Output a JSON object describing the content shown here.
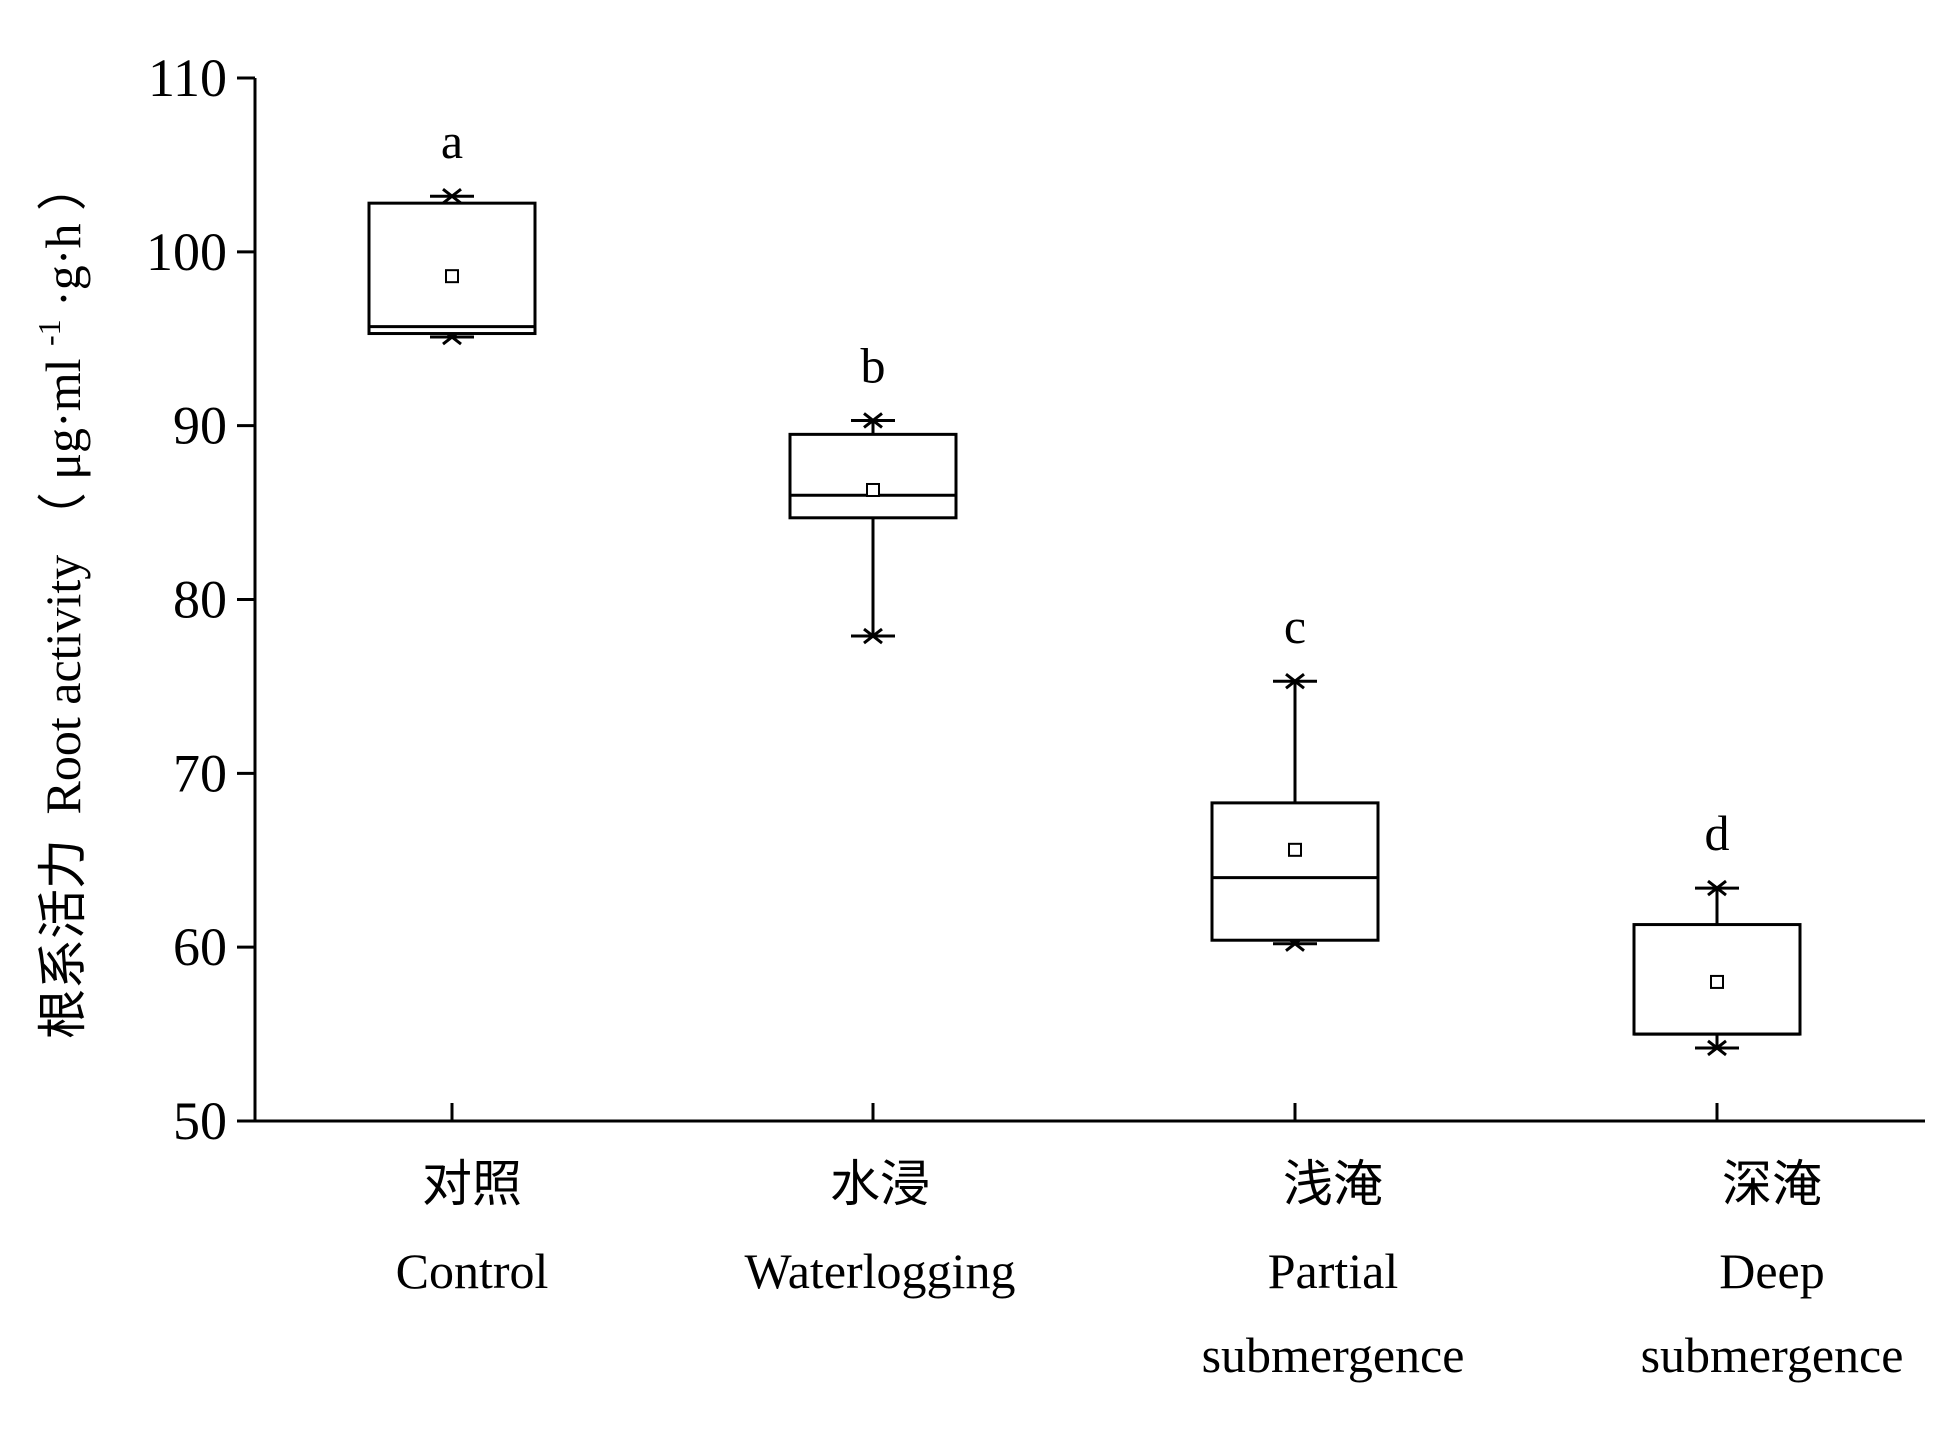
{
  "chart_data": {
    "type": "box",
    "ylabel": "根系活力 Root activity（μg·ml⁻¹·g·h）",
    "ylabel_parts": {
      "cn": "根系活力",
      "en": "Root activity",
      "unit_open": "（",
      "unit_main": "μg·ml",
      "unit_sup": "-1",
      "unit_tail": "·g·h",
      "unit_close": "）"
    },
    "ylim": [
      50,
      110
    ],
    "yticks": [
      50,
      60,
      70,
      80,
      90,
      100,
      110
    ],
    "grid": false,
    "legend": "none",
    "categories": [
      {
        "cn": "对照",
        "en": [
          "Control"
        ]
      },
      {
        "cn": "水浸",
        "en": [
          "Waterlogging"
        ]
      },
      {
        "cn": "浅淹",
        "en": [
          "Partial",
          "submergence"
        ]
      },
      {
        "cn": "深淹",
        "en": [
          "Deep",
          "submergence"
        ]
      }
    ],
    "boxes": [
      {
        "min": 95.1,
        "q1": 95.3,
        "median": 95.7,
        "q3": 102.8,
        "max": 103.2,
        "mean": 98.6,
        "sig": "a",
        "has_whiskers": false
      },
      {
        "min": 77.9,
        "q1": 84.7,
        "median": 86.0,
        "q3": 89.5,
        "max": 90.3,
        "mean": 86.3,
        "sig": "b",
        "has_whiskers": true
      },
      {
        "min": 60.2,
        "q1": 60.4,
        "median": 64.0,
        "q3": 68.3,
        "max": 75.3,
        "mean": 65.6,
        "sig": "c",
        "has_whiskers": true
      },
      {
        "min": 54.2,
        "q1": 55.0,
        "median": 55.0,
        "q3": 61.3,
        "max": 63.4,
        "mean": 58.0,
        "sig": "d",
        "has_whiskers": true
      }
    ]
  }
}
